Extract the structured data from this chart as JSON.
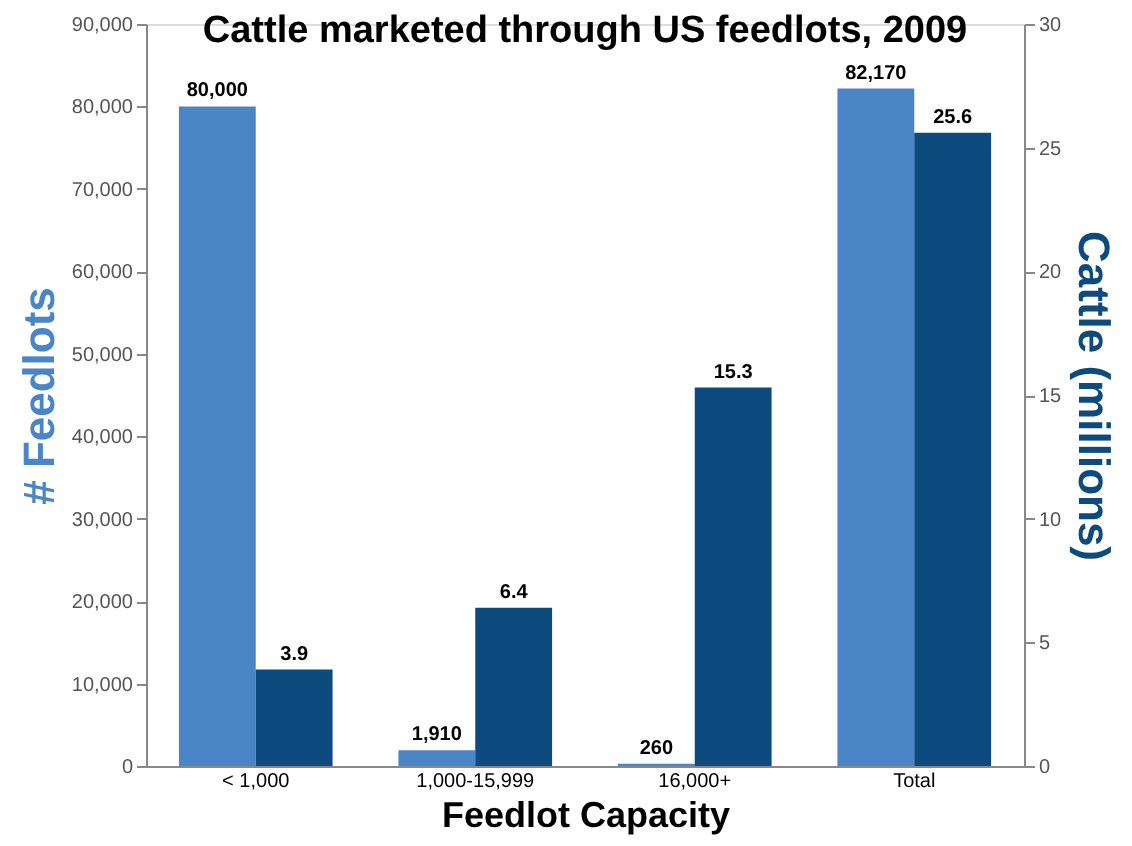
{
  "chart_data": {
    "type": "bar",
    "title": "Cattle marketed through US feedlots, 2009",
    "categories": [
      "< 1,000",
      "1,000-15,999",
      "16,000+",
      "Total"
    ],
    "xlabel": "Feedlot Capacity",
    "ylabel": "# Feedlots",
    "y2label": "Cattle (millions)",
    "series": [
      {
        "color": "#4a86c5",
        "values": [
          80000,
          1910,
          260,
          82170
        ],
        "value_labels": [
          "80,000",
          "1,910",
          "260",
          "82,170"
        ]
      },
      {
        "color": "#0d4a7e",
        "axis": "y2",
        "values": [
          3.9,
          6.4,
          15.3,
          25.6
        ],
        "value_labels": [
          "3.9",
          "6.4",
          "15.3",
          "25.6"
        ]
      }
    ],
    "ylim": [
      0,
      90000
    ],
    "yticks": [
      {
        "value": 0,
        "label": "0"
      },
      {
        "value": 10000,
        "label": "10,000"
      },
      {
        "value": 20000,
        "label": "20,000"
      },
      {
        "value": 30000,
        "label": "30,000"
      },
      {
        "value": 40000,
        "label": "40,000"
      },
      {
        "value": 50000,
        "label": "50,000"
      },
      {
        "value": 60000,
        "label": "60,000"
      },
      {
        "value": 70000,
        "label": "70,000"
      },
      {
        "value": 80000,
        "label": "80,000"
      },
      {
        "value": 90000,
        "label": "90,000"
      }
    ],
    "y2lim": [
      0,
      30
    ],
    "y2ticks": [
      0,
      5,
      10,
      15,
      20,
      25,
      30
    ],
    "grid": false
  }
}
